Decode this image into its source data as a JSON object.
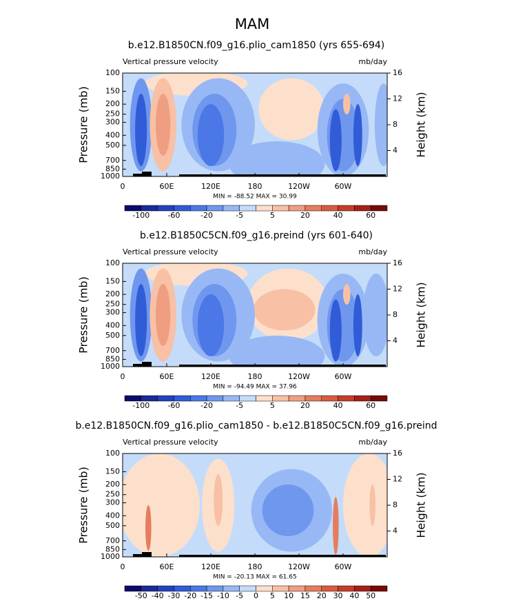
{
  "title": "MAM",
  "chart_data": [
    {
      "type": "contour",
      "title": "b.e12.B1850CN.f09_g16.plio_cam1850 (yrs 655-694)",
      "left_label": "Vertical pressure velocity",
      "right_label": "mb/day",
      "y_label": "Pressure (mb)",
      "y2_label": "Height (km)",
      "xlim": [
        0,
        360
      ],
      "xticks": [
        0,
        {
          "value": 60,
          "label": "60E"
        },
        {
          "value": 120,
          "label": "120E"
        },
        180,
        {
          "value": 240,
          "label": "120W"
        },
        {
          "value": 300,
          "label": "60W"
        }
      ],
      "ylim": [
        1000,
        100
      ],
      "ylog": true,
      "yticks": [
        100,
        150,
        200,
        250,
        300,
        400,
        500,
        700,
        850,
        1000
      ],
      "y2lim": [
        0,
        16
      ],
      "y2ticks": [
        4,
        8,
        12,
        16
      ],
      "stats": "MIN = -88.52   MAX =  30.99",
      "colorbar_colors": [
        "#0b0b6b",
        "#1a2a98",
        "#2342bf",
        "#305cd8",
        "#4b78e6",
        "#6f97ee",
        "#98b8f5",
        "#c4dcf9",
        "#fce0cc",
        "#f8c0a4",
        "#f09e82",
        "#e67c5e",
        "#da5a3e",
        "#c63c28",
        "#a52018",
        "#760a0a"
      ],
      "colorbar_ticks": [
        -100,
        -60,
        -20,
        -5,
        5,
        20,
        40,
        60
      ]
    },
    {
      "type": "contour",
      "title": "b.e12.B1850C5CN.f09_g16.preind (yrs 601-640)",
      "left_label": "Vertical pressure velocity",
      "right_label": "mb/day",
      "y_label": "Pressure (mb)",
      "y2_label": "Height (km)",
      "xlim": [
        0,
        360
      ],
      "xticks": [
        0,
        {
          "value": 60,
          "label": "60E"
        },
        {
          "value": 120,
          "label": "120E"
        },
        180,
        {
          "value": 240,
          "label": "120W"
        },
        {
          "value": 300,
          "label": "60W"
        }
      ],
      "ylim": [
        1000,
        100
      ],
      "ylog": true,
      "yticks": [
        100,
        150,
        200,
        250,
        300,
        400,
        500,
        700,
        850,
        1000
      ],
      "y2lim": [
        0,
        16
      ],
      "y2ticks": [
        4,
        8,
        12,
        16
      ],
      "stats": "MIN = -94.49   MAX =  37.96",
      "colorbar_colors": [
        "#0b0b6b",
        "#1a2a98",
        "#2342bf",
        "#305cd8",
        "#4b78e6",
        "#6f97ee",
        "#98b8f5",
        "#c4dcf9",
        "#fce0cc",
        "#f8c0a4",
        "#f09e82",
        "#e67c5e",
        "#da5a3e",
        "#c63c28",
        "#a52018",
        "#760a0a"
      ],
      "colorbar_ticks": [
        -100,
        -60,
        -20,
        -5,
        5,
        20,
        40,
        60
      ]
    },
    {
      "type": "contour",
      "title": "b.e12.B1850CN.f09_g16.plio_cam1850 - b.e12.B1850C5CN.f09_g16.preind",
      "left_label": "Vertical pressure velocity",
      "right_label": "mb/day",
      "y_label": "Pressure (mb)",
      "y2_label": "Height (km)",
      "xlim": [
        0,
        360
      ],
      "xticks": [
        0,
        {
          "value": 60,
          "label": "60E"
        },
        {
          "value": 120,
          "label": "120E"
        },
        180,
        {
          "value": 240,
          "label": "120W"
        },
        {
          "value": 300,
          "label": "60W"
        }
      ],
      "ylim": [
        1000,
        100
      ],
      "ylog": true,
      "yticks": [
        100,
        150,
        200,
        250,
        300,
        400,
        500,
        700,
        850,
        1000
      ],
      "y2lim": [
        0,
        16
      ],
      "y2ticks": [
        4,
        8,
        12,
        16
      ],
      "stats": "MIN = -20.13   MAX =  61.65",
      "colorbar_colors": [
        "#0b0b6b",
        "#1a2a98",
        "#2342bf",
        "#305cd8",
        "#4b78e6",
        "#6f97ee",
        "#98b8f5",
        "#c4dcf9",
        "#fce0cc",
        "#f8c0a4",
        "#f09e82",
        "#e67c5e",
        "#da5a3e",
        "#c63c28",
        "#a52018",
        "#760a0a"
      ],
      "colorbar_ticks": [
        -50,
        -40,
        -30,
        -20,
        -15,
        -10,
        -5,
        0,
        5,
        10,
        15,
        20,
        30,
        40,
        50
      ]
    }
  ]
}
